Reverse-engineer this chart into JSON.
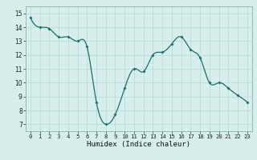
{
  "x": [
    0,
    1,
    2,
    3,
    4,
    5,
    6,
    7,
    8,
    9,
    10,
    11,
    12,
    13,
    14,
    15,
    16,
    17,
    18,
    19,
    20,
    21,
    22,
    23
  ],
  "y": [
    14.7,
    14.0,
    13.9,
    13.3,
    13.3,
    13.0,
    12.6,
    8.6,
    7.0,
    7.7,
    9.6,
    11.0,
    10.8,
    12.0,
    12.2,
    12.8,
    13.3,
    12.4,
    11.8,
    10.0,
    10.0,
    9.6,
    9.1,
    8.6
  ],
  "line_color": "#1a7068",
  "marker_color": "#1a7068",
  "bg_color": "#d6efec",
  "grid_color_major": "#b8d8d4",
  "grid_color_minor": "#c8e4e0",
  "xlabel": "Humidex (Indice chaleur)",
  "ylim": [
    6.5,
    15.5
  ],
  "xlim": [
    -0.5,
    23.5
  ],
  "yticks": [
    7,
    8,
    9,
    10,
    11,
    12,
    13,
    14,
    15
  ],
  "xticks": [
    0,
    1,
    2,
    3,
    4,
    5,
    6,
    7,
    8,
    9,
    10,
    11,
    12,
    13,
    14,
    15,
    16,
    17,
    18,
    19,
    20,
    21,
    22,
    23
  ],
  "tick_fontsize": 5.5,
  "xlabel_fontsize": 6.5
}
